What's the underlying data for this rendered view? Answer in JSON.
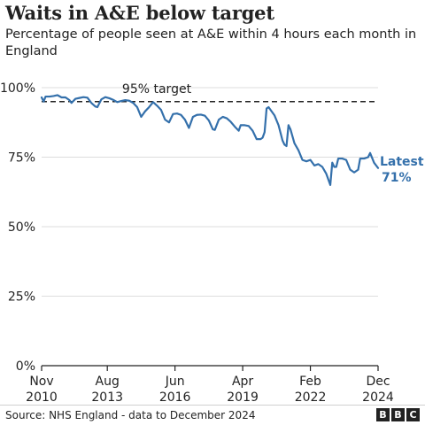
{
  "header": {
    "title": "Waits in A&E below target",
    "subtitle": "Percentage of people seen at A&E within 4 hours each month in England"
  },
  "footer": {
    "source": "Source: NHS England - data to December 2024",
    "logo_letters": [
      "B",
      "B",
      "C"
    ]
  },
  "colors": {
    "line": "#3470ab",
    "target_line": "#222222",
    "grid": "#dddddd",
    "axis": "#222222",
    "text": "#222222"
  },
  "chart_data": {
    "type": "line",
    "title": "Waits in A&E below target",
    "subtitle": "Percentage of people seen at A&E within 4 hours each month in England",
    "xlabel": "",
    "ylabel": "",
    "xlim": [
      "2010-11",
      "2024-12"
    ],
    "ylim": [
      0,
      100
    ],
    "y_ticks": [
      0,
      25,
      50,
      75,
      100
    ],
    "y_tick_labels": [
      "0%",
      "25%",
      "50%",
      "75%",
      "100%"
    ],
    "x_ticks": [
      {
        "date": "2010-11",
        "label_month": "Nov",
        "label_year": "2010"
      },
      {
        "date": "2013-08",
        "label_month": "Aug",
        "label_year": "2013"
      },
      {
        "date": "2016-06",
        "label_month": "Jun",
        "label_year": "2016"
      },
      {
        "date": "2019-04",
        "label_month": "Apr",
        "label_year": "2019"
      },
      {
        "date": "2022-02",
        "label_month": "Feb",
        "label_year": "2022"
      },
      {
        "date": "2024-12",
        "label_month": "Dec",
        "label_year": "2024"
      }
    ],
    "grid": "horizontal",
    "target": {
      "value": 95,
      "label": "95% target"
    },
    "latest_annotation": {
      "line1": "Latest",
      "line2": "71%"
    },
    "series": [
      {
        "points": [
          [
            "2010-11",
            96.5
          ],
          [
            "2010-12",
            95.0
          ],
          [
            "2011-01",
            96.8
          ],
          [
            "2011-03",
            96.8
          ],
          [
            "2011-05",
            97.0
          ],
          [
            "2011-07",
            97.3
          ],
          [
            "2011-09",
            96.5
          ],
          [
            "2011-11",
            96.5
          ],
          [
            "2012-01",
            95.5
          ],
          [
            "2012-02",
            94.5
          ],
          [
            "2012-04",
            96.0
          ],
          [
            "2012-06",
            96.3
          ],
          [
            "2012-08",
            96.6
          ],
          [
            "2012-10",
            96.4
          ],
          [
            "2012-12",
            94.5
          ],
          [
            "2013-02",
            93.2
          ],
          [
            "2013-03",
            93.0
          ],
          [
            "2013-05",
            95.8
          ],
          [
            "2013-07",
            96.6
          ],
          [
            "2013-09",
            96.2
          ],
          [
            "2013-11",
            95.6
          ],
          [
            "2014-01",
            94.8
          ],
          [
            "2014-03",
            95.2
          ],
          [
            "2014-05",
            95.5
          ],
          [
            "2014-07",
            95.3
          ],
          [
            "2014-09",
            94.5
          ],
          [
            "2014-11",
            93.0
          ],
          [
            "2015-01",
            89.5
          ],
          [
            "2015-03",
            91.5
          ],
          [
            "2015-05",
            93.0
          ],
          [
            "2015-07",
            94.8
          ],
          [
            "2015-09",
            93.5
          ],
          [
            "2015-11",
            92.0
          ],
          [
            "2016-01",
            88.5
          ],
          [
            "2016-03",
            87.5
          ],
          [
            "2016-05",
            90.5
          ],
          [
            "2016-07",
            90.7
          ],
          [
            "2016-09",
            90.2
          ],
          [
            "2016-11",
            88.5
          ],
          [
            "2017-01",
            85.5
          ],
          [
            "2017-03",
            89.5
          ],
          [
            "2017-05",
            90.2
          ],
          [
            "2017-07",
            90.3
          ],
          [
            "2017-09",
            89.9
          ],
          [
            "2017-11",
            88.2
          ],
          [
            "2018-01",
            85.0
          ],
          [
            "2018-02",
            84.8
          ],
          [
            "2018-04",
            88.5
          ],
          [
            "2018-06",
            89.5
          ],
          [
            "2018-08",
            89.0
          ],
          [
            "2018-10",
            87.7
          ],
          [
            "2018-12",
            86.0
          ],
          [
            "2019-02",
            84.5
          ],
          [
            "2019-03",
            86.5
          ],
          [
            "2019-05",
            86.5
          ],
          [
            "2019-07",
            86.2
          ],
          [
            "2019-09",
            84.5
          ],
          [
            "2019-11",
            81.5
          ],
          [
            "2020-01",
            81.5
          ],
          [
            "2020-02",
            82.0
          ],
          [
            "2020-03",
            84.0
          ],
          [
            "2020-04",
            92.5
          ],
          [
            "2020-05",
            93.0
          ],
          [
            "2020-06",
            92.0
          ],
          [
            "2020-08",
            90.0
          ],
          [
            "2020-10",
            86.5
          ],
          [
            "2020-12",
            81.0
          ],
          [
            "2021-01",
            79.5
          ],
          [
            "2021-02",
            79.0
          ],
          [
            "2021-03",
            86.5
          ],
          [
            "2021-04",
            85.0
          ],
          [
            "2021-06",
            80.0
          ],
          [
            "2021-08",
            77.5
          ],
          [
            "2021-10",
            74.0
          ],
          [
            "2021-12",
            73.5
          ],
          [
            "2022-02",
            74.0
          ],
          [
            "2022-04",
            72.0
          ],
          [
            "2022-06",
            72.5
          ],
          [
            "2022-08",
            71.5
          ],
          [
            "2022-10",
            69.0
          ],
          [
            "2022-12",
            65.0
          ],
          [
            "2023-01",
            73.0
          ],
          [
            "2023-02",
            71.5
          ],
          [
            "2023-03",
            71.5
          ],
          [
            "2023-04",
            74.5
          ],
          [
            "2023-06",
            74.5
          ],
          [
            "2023-08",
            74.0
          ],
          [
            "2023-10",
            70.5
          ],
          [
            "2023-12",
            69.5
          ],
          [
            "2024-02",
            70.5
          ],
          [
            "2024-03",
            74.5
          ],
          [
            "2024-05",
            74.5
          ],
          [
            "2024-07",
            75.0
          ],
          [
            "2024-08",
            76.5
          ],
          [
            "2024-10",
            73.0
          ],
          [
            "2024-12",
            71.1
          ]
        ]
      }
    ]
  }
}
